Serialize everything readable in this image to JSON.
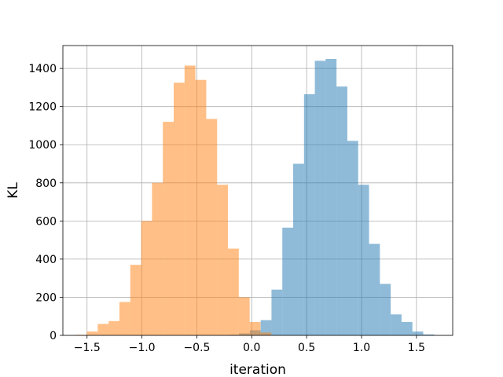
{
  "chart_data": {
    "type": "histogram",
    "xlabel": "iteration",
    "ylabel": "KL",
    "xlim": [
      -1.72,
      1.83
    ],
    "ylim": [
      0,
      1520
    ],
    "xticks": [
      -1.5,
      -1.0,
      -0.5,
      0.0,
      0.5,
      1.0,
      1.5
    ],
    "xtick_labels": [
      "−1.5",
      "−1.0",
      "−0.5",
      "0.0",
      "0.5",
      "1.0",
      "1.5"
    ],
    "yticks": [
      0,
      200,
      400,
      600,
      800,
      1000,
      1200,
      1400
    ],
    "ytick_labels": [
      "0",
      "200",
      "400",
      "600",
      "800",
      "1000",
      "1200",
      "1400"
    ],
    "grid": true,
    "bar_opacity": 0.5,
    "series": [
      {
        "color": "#1f77b4",
        "bin_start": -0.215,
        "bin_width": 0.0987,
        "values": [
          3,
          10,
          27,
          80,
          240,
          565,
          900,
          1265,
          1440,
          1450,
          1305,
          1020,
          790,
          480,
          270,
          110,
          70,
          20,
          5
        ]
      },
      {
        "color": "#ff7f0e",
        "bin_start": -1.6,
        "bin_width": 0.0988,
        "values": [
          3,
          20,
          60,
          75,
          175,
          370,
          600,
          800,
          1120,
          1325,
          1415,
          1340,
          1135,
          790,
          455,
          200,
          70,
          15
        ]
      }
    ]
  }
}
